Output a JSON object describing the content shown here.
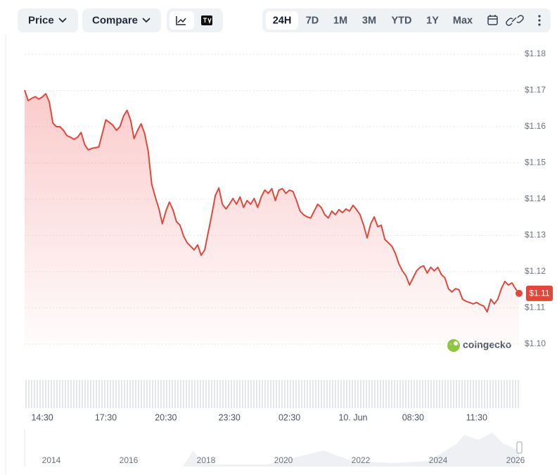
{
  "toolbar": {
    "menus": [
      "Price",
      "Compare"
    ],
    "ranges": [
      "24H",
      "7D",
      "1M",
      "3M",
      "YTD",
      "1Y",
      "Max"
    ]
  },
  "chart_data": {
    "type": "line",
    "categories": [
      null,
      null,
      null,
      null,
      null,
      "14:30",
      null,
      null,
      null,
      null,
      null,
      null,
      null,
      null,
      null,
      null,
      null,
      null,
      null,
      null,
      null,
      null,
      null,
      "17:30",
      null,
      null,
      null,
      null,
      null,
      null,
      null,
      null,
      null,
      null,
      null,
      null,
      null,
      null,
      null,
      null,
      "20:30",
      null,
      null,
      null,
      null,
      null,
      null,
      null,
      null,
      null,
      null,
      null,
      null,
      null,
      null,
      null,
      null,
      null,
      "23:30",
      null,
      null,
      null,
      null,
      null,
      null,
      null,
      null,
      null,
      null,
      null,
      null,
      null,
      null,
      null,
      null,
      "02:30",
      null,
      null,
      null,
      null,
      null,
      null,
      null,
      null,
      null,
      null,
      null,
      null,
      null,
      null,
      null,
      null,
      null,
      "10. Jun",
      null,
      null,
      null,
      null,
      null,
      null,
      null,
      null,
      null,
      null,
      null,
      null,
      null,
      null,
      null,
      null,
      "08:30",
      null,
      null,
      null,
      null,
      null,
      null,
      null,
      null,
      null,
      null,
      null,
      null,
      null,
      null,
      null,
      null,
      null,
      "11:30",
      null,
      null,
      null,
      null,
      null,
      null,
      null,
      null,
      null,
      null,
      null,
      null
    ],
    "values": [
      1.1701,
      1.1672,
      1.1678,
      1.1683,
      1.1676,
      1.1682,
      1.1691,
      1.1668,
      1.161,
      1.16,
      1.16,
      1.159,
      1.1575,
      1.1571,
      1.1565,
      1.1571,
      1.1584,
      1.1551,
      1.1536,
      1.154,
      1.1542,
      1.1544,
      1.1581,
      1.1619,
      1.1612,
      1.1604,
      1.159,
      1.16,
      1.1629,
      1.1645,
      1.1619,
      1.1567,
      1.159,
      1.1608,
      1.1581,
      1.1532,
      1.1441,
      1.1406,
      1.1375,
      1.1332,
      1.1367,
      1.1392,
      1.1371,
      1.1338,
      1.1328,
      1.1299,
      1.128,
      1.127,
      1.126,
      1.1274,
      1.1245,
      1.126,
      1.1309,
      1.1357,
      1.141,
      1.1431,
      1.1386,
      1.1373,
      1.1386,
      1.1402,
      1.1386,
      1.1406,
      1.1377,
      1.1396,
      1.1386,
      1.1402,
      1.1377,
      1.1406,
      1.1425,
      1.1416,
      1.1429,
      1.1396,
      1.1425,
      1.1429,
      1.1416,
      1.1425,
      1.1421,
      1.1396,
      1.1367,
      1.1357,
      1.1351,
      1.1348,
      1.1367,
      1.1386,
      1.1377,
      1.1357,
      1.1348,
      1.1367,
      1.1357,
      1.1371,
      1.1363,
      1.1373,
      1.1367,
      1.1383,
      1.1371,
      1.1357,
      1.1328,
      1.1293,
      1.1332,
      1.1351,
      1.1324,
      1.1328,
      1.1289,
      1.128,
      1.127,
      1.125,
      1.1221,
      1.1202,
      1.1188,
      1.1163,
      1.1183,
      1.1202,
      1.1212,
      1.1216,
      1.1196,
      1.1212,
      1.1202,
      1.1212,
      1.1192,
      1.1183,
      1.1153,
      1.1144,
      1.1153,
      1.115,
      1.1124,
      1.1118,
      1.1115,
      1.1111,
      1.1115,
      1.1109,
      1.1105,
      1.1089,
      1.1124,
      1.1111,
      1.1124,
      1.1153,
      1.1173,
      1.1163,
      1.1169,
      1.1153,
      1.114
    ],
    "last_label": "$1.11",
    "color": "#e0483b",
    "ylim": [
      1.1,
      1.18
    ],
    "yticks": [
      {
        "value": 1.1,
        "label": "$1.10"
      },
      {
        "value": 1.11,
        "label": "$1.11"
      },
      {
        "value": 1.12,
        "label": "$1.12"
      },
      {
        "value": 1.13,
        "label": "$1.13"
      },
      {
        "value": 1.14,
        "label": "$1.14"
      },
      {
        "value": 1.15,
        "label": "$1.15"
      },
      {
        "value": 1.16,
        "label": "$1.16"
      },
      {
        "value": 1.17,
        "label": "$1.17"
      },
      {
        "value": 1.18,
        "label": "$1.18"
      }
    ],
    "grid": true,
    "watermark": "coingecko"
  },
  "navigator": {
    "labels": [
      "2014",
      "2016",
      "2018",
      "2020",
      "2022",
      "2024",
      "2026"
    ]
  }
}
